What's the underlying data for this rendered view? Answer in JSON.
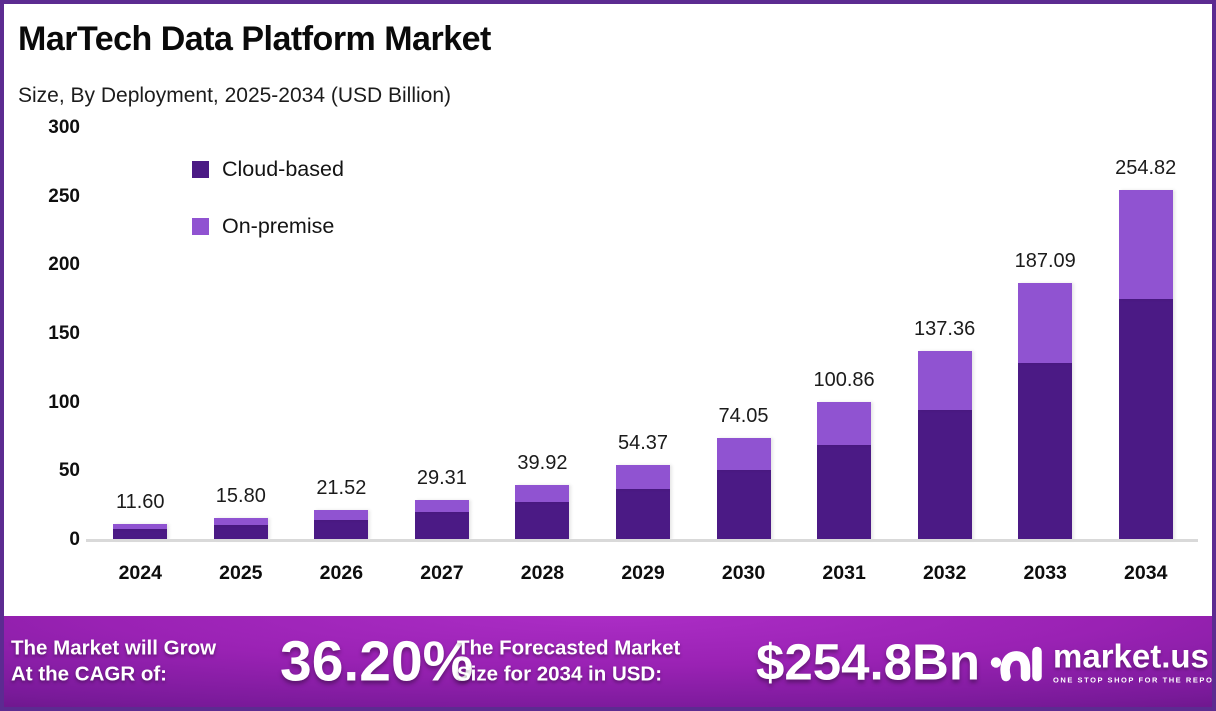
{
  "header": {
    "title": "MarTech Data Platform Market",
    "subtitle": "Size, By Deployment, 2025-2034 (USD Billion)"
  },
  "chart_data": {
    "type": "bar",
    "stacked": true,
    "title": "MarTech Data Platform Market Size, By Deployment, 2025-2034 (USD Billion)",
    "xlabel": "",
    "ylabel": "",
    "ylim": [
      0,
      300
    ],
    "yticks": [
      0,
      50,
      100,
      150,
      200,
      250,
      300
    ],
    "grid": false,
    "legend_position": "top-left",
    "categories": [
      "2024",
      "2025",
      "2026",
      "2027",
      "2028",
      "2029",
      "2030",
      "2031",
      "2032",
      "2033",
      "2034"
    ],
    "series": [
      {
        "name": "Cloud-based",
        "color": "#4b1a85",
        "values": [
          7.98,
          10.88,
          14.82,
          20.18,
          27.49,
          37.44,
          51.0,
          69.45,
          94.59,
          129.05,
          175.72
        ]
      },
      {
        "name": "On-premise",
        "color": "#9053d1",
        "values": [
          3.62,
          4.92,
          6.7,
          9.13,
          12.43,
          16.93,
          23.05,
          31.41,
          42.77,
          58.04,
          79.1
        ]
      }
    ],
    "total_labels": [
      "11.60",
      "15.80",
      "21.52",
      "29.31",
      "39.92",
      "54.37",
      "74.05",
      "100.86",
      "137.36",
      "187.09",
      "254.82"
    ]
  },
  "banner": {
    "cagr_label_line1": "The Market will Grow",
    "cagr_label_line2": "At the CAGR of:",
    "cagr_value": "36.20%",
    "forecast_label_line1": "The Forecasted Market",
    "forecast_label_line2": "Size for 2034 in USD:",
    "forecast_value": "$254.8Bn",
    "brand_name": "market.us",
    "brand_tagline": "ONE STOP SHOP FOR THE REPORTS"
  },
  "colors": {
    "frame_border": "#5c2b91",
    "cloud_based": "#4b1a85",
    "on_premise": "#9053d1",
    "baseline": "#d9d9d9",
    "banner_center": "#ab2dc5",
    "banner_edge": "#4a1168"
  }
}
